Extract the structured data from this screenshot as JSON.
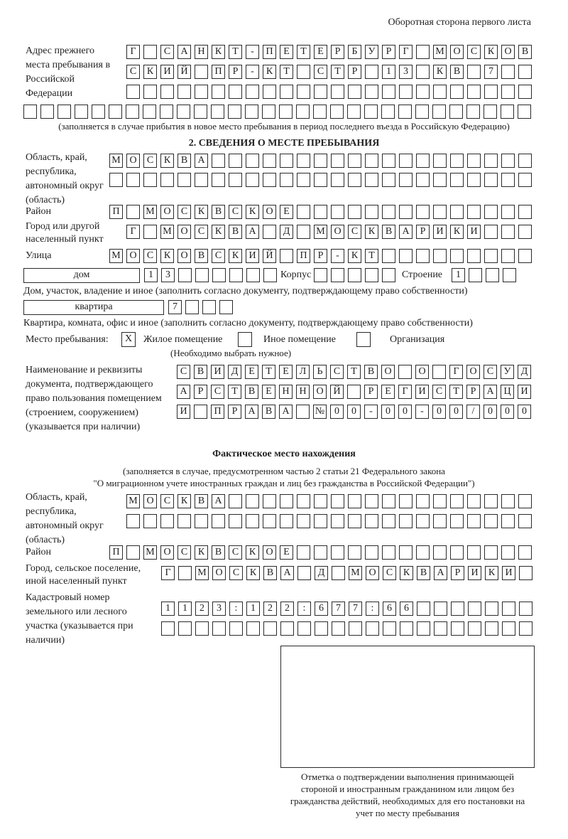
{
  "header": {
    "page_side": "Оборотная сторона первого листа"
  },
  "previous_address": {
    "label": "Адрес прежнего места пребывания в Российской Федерации",
    "rows": [
      [
        "Г",
        "",
        "С",
        "А",
        "Н",
        "К",
        "Т",
        "-",
        "П",
        "Е",
        "Т",
        "Е",
        "Р",
        "Б",
        "У",
        "Р",
        "Г",
        "",
        "М",
        "О",
        "С",
        "К",
        "О",
        "В"
      ],
      [
        "С",
        "К",
        "И",
        "Й",
        "",
        "П",
        "Р",
        "-",
        "К",
        "Т",
        "",
        "С",
        "Т",
        "Р",
        "",
        "1",
        "3",
        "",
        "К",
        "В",
        "",
        "7",
        "",
        ""
      ],
      [
        "",
        "",
        "",
        "",
        "",
        "",
        "",
        "",
        "",
        "",
        "",
        "",
        "",
        "",
        "",
        "",
        "",
        "",
        "",
        "",
        "",
        "",
        "",
        ""
      ],
      [
        "",
        "",
        "",
        "",
        "",
        "",
        "",
        "",
        "",
        "",
        "",
        "",
        "",
        "",
        "",
        "",
        "",
        "",
        "",
        "",
        "",
        "",
        "",
        "",
        "",
        "",
        "",
        "",
        "",
        ""
      ]
    ],
    "note": "(заполняется в случае прибытия в новое место пребывания в период последнего въезда в Российскую Федерацию)"
  },
  "section2": {
    "title": "2. СВЕДЕНИЯ О МЕСТЕ ПРЕБЫВАНИЯ",
    "region_label": "Область, край, республика, автономный округ (область)",
    "region_rows": [
      [
        "М",
        "О",
        "С",
        "К",
        "В",
        "А",
        "",
        "",
        "",
        "",
        "",
        "",
        "",
        "",
        "",
        "",
        "",
        "",
        "",
        "",
        "",
        "",
        "",
        "",
        ""
      ],
      [
        "",
        "",
        "",
        "",
        "",
        "",
        "",
        "",
        "",
        "",
        "",
        "",
        "",
        "",
        "",
        "",
        "",
        "",
        "",
        "",
        "",
        "",
        "",
        "",
        ""
      ]
    ],
    "district_label": "Район",
    "district": [
      "П",
      "",
      "М",
      "О",
      "С",
      "К",
      "В",
      "С",
      "К",
      "О",
      "Е",
      "",
      "",
      "",
      "",
      "",
      "",
      "",
      "",
      "",
      "",
      "",
      "",
      "",
      ""
    ],
    "city_label": "Город или другой населенный пункт",
    "city": [
      "Г",
      "",
      "М",
      "О",
      "С",
      "К",
      "В",
      "А",
      "",
      "Д",
      "",
      "М",
      "О",
      "С",
      "К",
      "В",
      "А",
      "Р",
      "И",
      "К",
      "И",
      "",
      "",
      ""
    ],
    "street_label": "Улица",
    "street": [
      "М",
      "О",
      "С",
      "К",
      "О",
      "В",
      "С",
      "К",
      "И",
      "Й",
      "",
      "П",
      "Р",
      "-",
      "К",
      "Т",
      "",
      "",
      "",
      "",
      "",
      "",
      "",
      "",
      ""
    ],
    "house_type": "дом",
    "house": [
      "1",
      "3",
      "",
      "",
      "",
      "",
      "",
      ""
    ],
    "corpus_label": "Корпус",
    "corpus": [
      "",
      "",
      "",
      "",
      ""
    ],
    "building_label": "Строение",
    "building": [
      "1",
      "",
      "",
      ""
    ],
    "house_note": "Дом, участок, владение и иное (заполнить согласно документу, подтверждающему право собственности)",
    "flat_type": "квартира",
    "flat": [
      "7",
      "",
      "",
      ""
    ],
    "flat_note": "Квартира, комната, офис и иное (заполнить согласно документу, подтверждающему право собственности)",
    "stay_place_label": "Место пребывания:",
    "options": [
      {
        "label": "Жилое помещение",
        "mark": "Х"
      },
      {
        "label": "Иное помещение",
        "mark": ""
      },
      {
        "label": "Организация",
        "mark": ""
      }
    ],
    "choose_note": "(Необходимо выбрать нужное)",
    "doc_label": "Наименование и реквизиты документа, подтверждающего право пользования помещением (строением, сооружением) (указывается при наличии)",
    "doc_rows": [
      [
        "С",
        "В",
        "И",
        "Д",
        "Е",
        "Т",
        "Е",
        "Л",
        "Ь",
        "С",
        "Т",
        "В",
        "О",
        "",
        "О",
        "",
        "Г",
        "О",
        "С",
        "У",
        "Д"
      ],
      [
        "А",
        "Р",
        "С",
        "Т",
        "В",
        "Е",
        "Н",
        "Н",
        "О",
        "Й",
        "",
        "Р",
        "Е",
        "Г",
        "И",
        "С",
        "Т",
        "Р",
        "А",
        "Ц",
        "И"
      ],
      [
        "И",
        "",
        "П",
        "Р",
        "А",
        "В",
        "А",
        "",
        "№",
        "0",
        "0",
        "-",
        "0",
        "0",
        "-",
        "0",
        "0",
        "/",
        "0",
        "0",
        "0"
      ]
    ]
  },
  "actual": {
    "title": "Фактическое место нахождения",
    "note1": "(заполняется в случае, предусмотренном частью 2 статьи 21 Федерального закона",
    "note2": "\"О миграционном учете иностранных граждан и лиц без гражданства в Российской Федерации\")",
    "region_label": "Область, край, республика, автономный округ (область)",
    "region_rows": [
      [
        "М",
        "О",
        "С",
        "К",
        "В",
        "А",
        "",
        "",
        "",
        "",
        "",
        "",
        "",
        "",
        "",
        "",
        "",
        "",
        "",
        "",
        "",
        "",
        "",
        ""
      ],
      [
        "",
        "",
        "",
        "",
        "",
        "",
        "",
        "",
        "",
        "",
        "",
        "",
        "",
        "",
        "",
        "",
        "",
        "",
        "",
        "",
        "",
        "",
        "",
        ""
      ]
    ],
    "district_label": "Район",
    "district": [
      "П",
      "",
      "М",
      "О",
      "С",
      "К",
      "В",
      "С",
      "К",
      "О",
      "Е",
      "",
      "",
      "",
      "",
      "",
      "",
      "",
      "",
      "",
      "",
      "",
      "",
      "",
      ""
    ],
    "city_label": "Город, сельское поселение, иной населенный пункт",
    "city": [
      "Г",
      "",
      "М",
      "О",
      "С",
      "К",
      "В",
      "А",
      "",
      "Д",
      "",
      "М",
      "О",
      "С",
      "К",
      "В",
      "А",
      "Р",
      "И",
      "К",
      "И",
      ""
    ],
    "cadastre_label": "Кадастровый номер земельного или лесного участка (указывается при наличии)",
    "cadastre_rows": [
      [
        "1",
        "1",
        "2",
        "3",
        ":",
        "1",
        "2",
        "2",
        ":",
        "6",
        "7",
        "7",
        ":",
        "6",
        "6",
        "",
        "",
        "",
        "",
        "",
        "",
        ""
      ],
      [
        "",
        "",
        "",
        "",
        "",
        "",
        "",
        "",
        "",
        "",
        "",
        "",
        "",
        "",
        "",
        "",
        "",
        "",
        "",
        "",
        "",
        ""
      ]
    ],
    "stamp_caption": "Отметка о подтверждении выполнения принимающей стороной и иностранным гражданином или лицом без гражданства действий, необходимых для его постановки на учет по месту пребывания"
  }
}
